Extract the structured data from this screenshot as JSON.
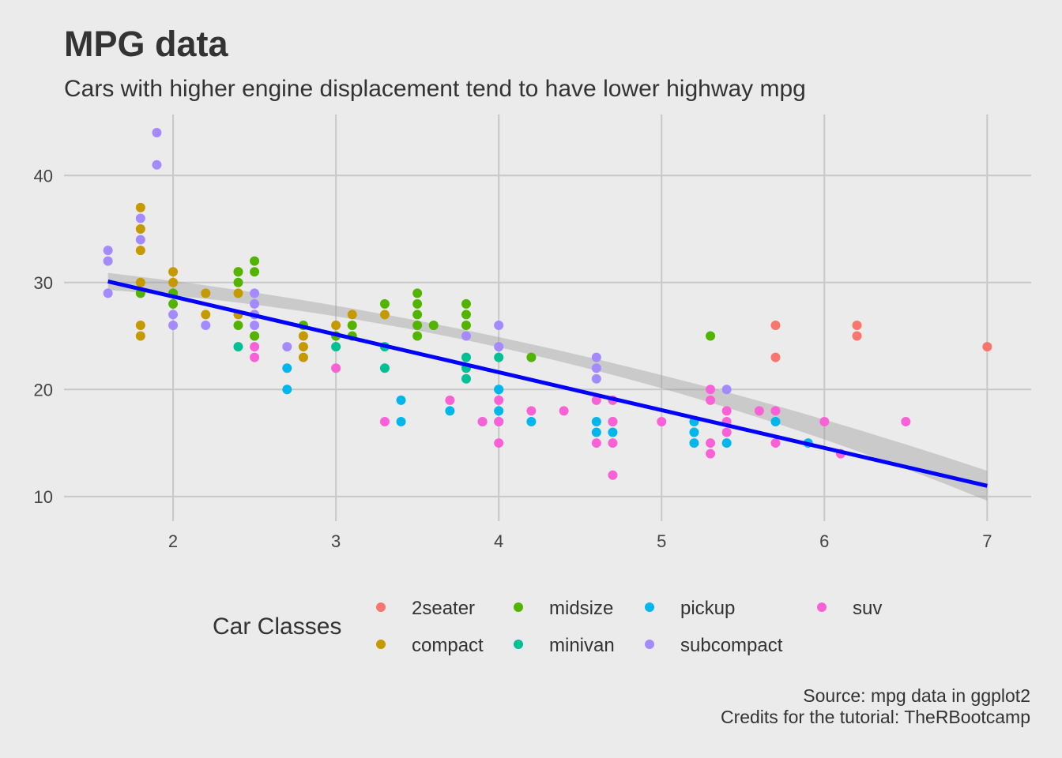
{
  "chart_data": {
    "type": "scatter",
    "title": "MPG data",
    "subtitle": "Cars with higher engine displacement tend to have lower highway mpg",
    "xlabel": "",
    "ylabel": "",
    "xlim": [
      1.33,
      7.27
    ],
    "ylim": [
      7.7,
      45.7
    ],
    "x_ticks": [
      2,
      3,
      4,
      5,
      6,
      7
    ],
    "y_ticks": [
      10,
      20,
      30,
      40
    ],
    "grid": true,
    "legend": {
      "title": "Car Classes",
      "placement": "bottom",
      "entries": [
        {
          "label": "2seater",
          "color": "#F8766D"
        },
        {
          "label": "midsize",
          "color": "#53B400"
        },
        {
          "label": "pickup",
          "color": "#00B6EB"
        },
        {
          "label": "suv",
          "color": "#FB61D7"
        },
        {
          "label": "compact",
          "color": "#C49A00"
        },
        {
          "label": "minivan",
          "color": "#00C094"
        },
        {
          "label": "subcompact",
          "color": "#A58AFF"
        }
      ]
    },
    "trend_line": {
      "method": "lm",
      "color": "#0000FF",
      "start": [
        1.6,
        30.1
      ],
      "end": [
        7.0,
        11.0
      ],
      "ci_start": [
        29.3,
        30.9
      ],
      "ci_mid": [
        22.9,
        23.9
      ],
      "ci_end": [
        9.6,
        12.4
      ]
    },
    "series": [
      {
        "name": "2seater",
        "color": "#F8766D",
        "points": [
          [
            5.7,
            26
          ],
          [
            5.7,
            23
          ],
          [
            6.2,
            26
          ],
          [
            6.2,
            25
          ],
          [
            7.0,
            24
          ]
        ]
      },
      {
        "name": "compact",
        "color": "#C49A00",
        "points": [
          [
            1.8,
            37
          ],
          [
            1.8,
            35
          ],
          [
            1.8,
            33
          ],
          [
            1.8,
            30
          ],
          [
            1.8,
            26
          ],
          [
            1.8,
            25
          ],
          [
            2.0,
            31
          ],
          [
            2.0,
            30
          ],
          [
            2.0,
            29
          ],
          [
            2.2,
            29
          ],
          [
            2.2,
            27
          ],
          [
            2.4,
            31
          ],
          [
            2.4,
            29
          ],
          [
            2.4,
            27
          ],
          [
            2.5,
            27
          ],
          [
            2.5,
            25
          ],
          [
            2.8,
            25
          ],
          [
            2.8,
            24
          ],
          [
            2.8,
            23
          ],
          [
            3.0,
            26
          ],
          [
            3.1,
            27
          ],
          [
            3.3,
            27
          ]
        ]
      },
      {
        "name": "midsize",
        "color": "#53B400",
        "points": [
          [
            1.8,
            29
          ],
          [
            2.0,
            29
          ],
          [
            2.0,
            28
          ],
          [
            2.4,
            31
          ],
          [
            2.4,
            30
          ],
          [
            2.4,
            26
          ],
          [
            2.5,
            32
          ],
          [
            2.5,
            31
          ],
          [
            2.5,
            25
          ],
          [
            2.8,
            26
          ],
          [
            3.0,
            25
          ],
          [
            3.1,
            26
          ],
          [
            3.1,
            25
          ],
          [
            3.3,
            28
          ],
          [
            3.5,
            29
          ],
          [
            3.5,
            28
          ],
          [
            3.5,
            27
          ],
          [
            3.5,
            26
          ],
          [
            3.5,
            25
          ],
          [
            3.6,
            26
          ],
          [
            3.8,
            28
          ],
          [
            3.8,
            27
          ],
          [
            3.8,
            26
          ],
          [
            4.2,
            23
          ],
          [
            5.3,
            25
          ]
        ]
      },
      {
        "name": "minivan",
        "color": "#00C094",
        "points": [
          [
            2.4,
            24
          ],
          [
            3.0,
            24
          ],
          [
            3.3,
            24
          ],
          [
            3.3,
            22
          ],
          [
            3.8,
            23
          ],
          [
            3.8,
            22
          ],
          [
            3.8,
            21
          ],
          [
            4.0,
            23
          ],
          [
            4.0,
            20
          ]
        ]
      },
      {
        "name": "pickup",
        "color": "#00B6EB",
        "points": [
          [
            2.7,
            22
          ],
          [
            2.7,
            20
          ],
          [
            3.4,
            19
          ],
          [
            3.4,
            17
          ],
          [
            3.7,
            18
          ],
          [
            3.9,
            17
          ],
          [
            4.0,
            20
          ],
          [
            4.0,
            18
          ],
          [
            4.0,
            17
          ],
          [
            4.2,
            17
          ],
          [
            4.6,
            17
          ],
          [
            4.6,
            16
          ],
          [
            4.7,
            17
          ],
          [
            4.7,
            16
          ],
          [
            5.2,
            17
          ],
          [
            5.2,
            16
          ],
          [
            5.2,
            15
          ],
          [
            5.4,
            15
          ],
          [
            5.7,
            17
          ],
          [
            5.9,
            15
          ]
        ]
      },
      {
        "name": "subcompact",
        "color": "#A58AFF",
        "points": [
          [
            1.6,
            33
          ],
          [
            1.6,
            32
          ],
          [
            1.6,
            29
          ],
          [
            1.8,
            36
          ],
          [
            1.8,
            34
          ],
          [
            1.9,
            44
          ],
          [
            1.9,
            41
          ],
          [
            2.0,
            27
          ],
          [
            2.0,
            26
          ],
          [
            2.2,
            26
          ],
          [
            2.5,
            29
          ],
          [
            2.5,
            28
          ],
          [
            2.5,
            27
          ],
          [
            2.5,
            26
          ],
          [
            2.7,
            24
          ],
          [
            3.8,
            25
          ],
          [
            4.0,
            26
          ],
          [
            4.0,
            24
          ],
          [
            4.6,
            23
          ],
          [
            4.6,
            22
          ],
          [
            4.6,
            21
          ],
          [
            5.4,
            20
          ]
        ]
      },
      {
        "name": "suv",
        "color": "#FB61D7",
        "points": [
          [
            2.5,
            24
          ],
          [
            2.5,
            23
          ],
          [
            3.0,
            22
          ],
          [
            3.3,
            17
          ],
          [
            3.7,
            19
          ],
          [
            3.9,
            17
          ],
          [
            4.0,
            19
          ],
          [
            4.0,
            17
          ],
          [
            4.0,
            15
          ],
          [
            4.2,
            18
          ],
          [
            4.4,
            18
          ],
          [
            4.6,
            19
          ],
          [
            4.6,
            15
          ],
          [
            4.7,
            19
          ],
          [
            4.7,
            17
          ],
          [
            4.7,
            15
          ],
          [
            4.7,
            12
          ],
          [
            5.0,
            17
          ],
          [
            5.3,
            20
          ],
          [
            5.3,
            19
          ],
          [
            5.3,
            15
          ],
          [
            5.3,
            14
          ],
          [
            5.4,
            18
          ],
          [
            5.4,
            17
          ],
          [
            5.4,
            16
          ],
          [
            5.6,
            18
          ],
          [
            5.7,
            18
          ],
          [
            5.7,
            15
          ],
          [
            6.0,
            17
          ],
          [
            6.1,
            14
          ],
          [
            6.5,
            17
          ]
        ]
      }
    ]
  },
  "caption": {
    "source": "Source: mpg data in ggplot2",
    "credits": "Credits for the tutorial: TheRBootcamp"
  }
}
